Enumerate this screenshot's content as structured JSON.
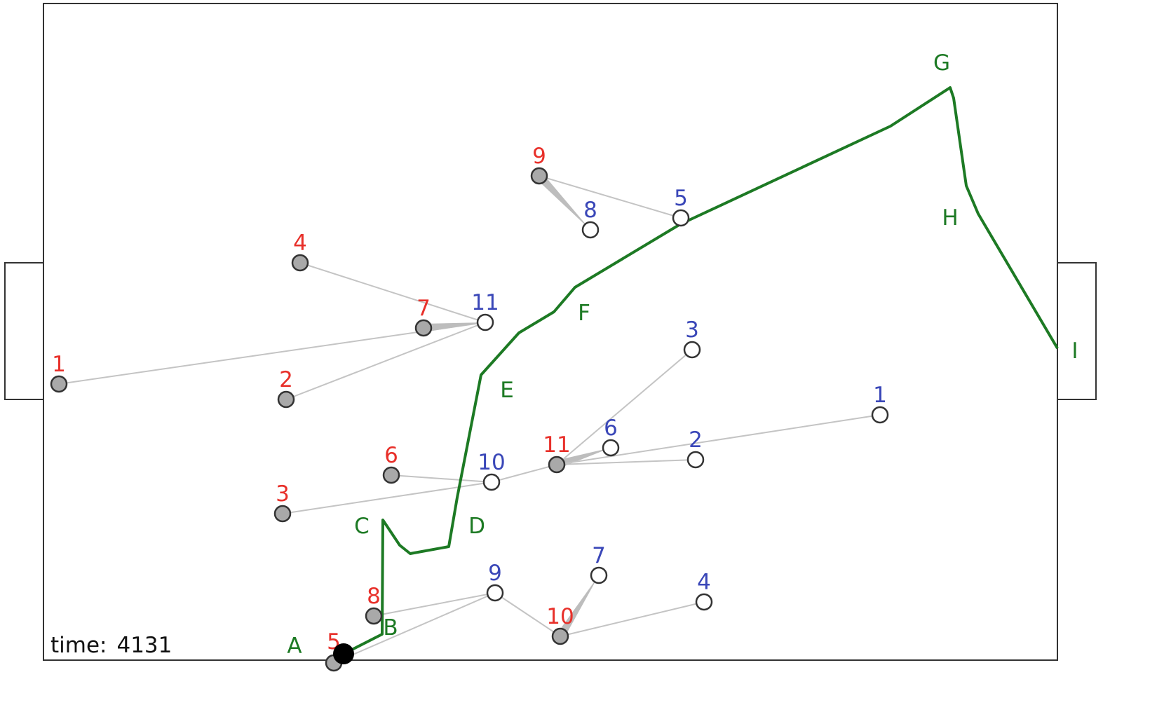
{
  "time": {
    "label": "time:",
    "value": "4131"
  },
  "colors": {
    "team_red_label": "#e8302a",
    "team_blue_label": "#3a47b8",
    "team_red_fill": "#a9a9a9",
    "team_blue_fill": "#ffffff",
    "path": "#1d7a24",
    "path_label": "#1d7a24",
    "link": "#c4c4c4",
    "ball": "#000000"
  },
  "red_players": [
    {
      "id": "r1",
      "label": "1"
    },
    {
      "id": "r2",
      "label": "2"
    },
    {
      "id": "r3",
      "label": "3"
    },
    {
      "id": "r4",
      "label": "4"
    },
    {
      "id": "r5",
      "label": "5"
    },
    {
      "id": "r6",
      "label": "6"
    },
    {
      "id": "r7",
      "label": "7"
    },
    {
      "id": "r8",
      "label": "8"
    },
    {
      "id": "r9",
      "label": "9"
    },
    {
      "id": "r10",
      "label": "10"
    },
    {
      "id": "r11",
      "label": "11"
    }
  ],
  "blue_players": [
    {
      "id": "b1",
      "label": "1"
    },
    {
      "id": "b2",
      "label": "2"
    },
    {
      "id": "b3",
      "label": "3"
    },
    {
      "id": "b4",
      "label": "4"
    },
    {
      "id": "b5",
      "label": "5"
    },
    {
      "id": "b6",
      "label": "6"
    },
    {
      "id": "b7",
      "label": "7"
    },
    {
      "id": "b8",
      "label": "8"
    },
    {
      "id": "b9",
      "label": "9"
    },
    {
      "id": "b10",
      "label": "10"
    },
    {
      "id": "b11",
      "label": "11"
    }
  ],
  "links": [
    {
      "from": "r1",
      "to": "b11",
      "strong": false
    },
    {
      "from": "r2",
      "to": "b11",
      "strong": false
    },
    {
      "from": "r4",
      "to": "b11",
      "strong": false
    },
    {
      "from": "r7",
      "to": "b11",
      "strong": true
    },
    {
      "from": "r9",
      "to": "b5",
      "strong": false
    },
    {
      "from": "r9",
      "to": "b8",
      "strong": true
    },
    {
      "from": "r6",
      "to": "b10",
      "strong": false
    },
    {
      "from": "r3",
      "to": "b10",
      "strong": false
    },
    {
      "from": "b10",
      "to": "r11",
      "strong": false
    },
    {
      "from": "r11",
      "to": "b6",
      "strong": true
    },
    {
      "from": "r11",
      "to": "b3",
      "strong": false
    },
    {
      "from": "r11",
      "to": "b2",
      "strong": false
    },
    {
      "from": "r11",
      "to": "b1",
      "strong": false
    },
    {
      "from": "r8",
      "to": "b9",
      "strong": false
    },
    {
      "from": "r5",
      "to": "b9",
      "strong": false
    },
    {
      "from": "b9",
      "to": "r10",
      "strong": false
    },
    {
      "from": "r10",
      "to": "b7",
      "strong": true
    },
    {
      "from": "r10",
      "to": "b4",
      "strong": false
    }
  ],
  "path_waypoints": [
    "A",
    "B",
    "C",
    "D",
    "E",
    "F",
    "G",
    "H",
    "I"
  ]
}
